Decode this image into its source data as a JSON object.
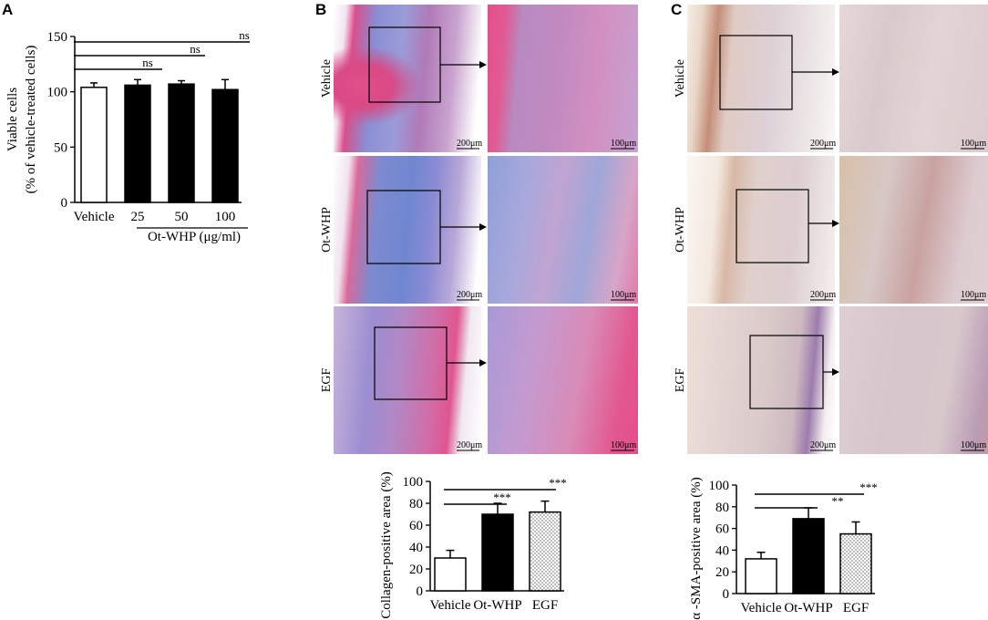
{
  "panels": {
    "A": "A",
    "B": "B",
    "C": "C"
  },
  "micrograph_rows": [
    "Vehicle",
    "Ot-WHP",
    "EGF"
  ],
  "scale_bars": {
    "low": "200μm",
    "high": "100μm"
  },
  "colors": {
    "vehicle_fill": "#ffffff",
    "otwhp_fill": "#000000",
    "egf_fill": "dotted-gray"
  },
  "chart_data": [
    {
      "id": "A",
      "type": "bar",
      "ylabel_line1": "Viable cells",
      "ylabel_line2": "(% of vehicle-treated cells)",
      "xlabel": "Ot-WHP (μg/ml)",
      "categories": [
        "Vehicle",
        "25",
        "50",
        "100"
      ],
      "values": [
        104,
        106,
        107,
        102
      ],
      "errors": [
        4,
        5,
        3,
        9
      ],
      "fills": [
        "white",
        "black",
        "black",
        "black"
      ],
      "ylim": [
        0,
        150
      ],
      "yticks": [
        "0",
        "50",
        "100",
        "150"
      ],
      "significance": [
        "ns",
        "ns",
        "ns"
      ]
    },
    {
      "id": "B",
      "type": "bar",
      "ylabel": "Collagen-positive area (%)",
      "categories": [
        "Vehicle",
        "Ot-WHP",
        "EGF"
      ],
      "values": [
        30,
        70,
        72
      ],
      "errors": [
        7,
        10,
        10
      ],
      "fills": [
        "white",
        "black",
        "dotted"
      ],
      "ylim": [
        0,
        100
      ],
      "yticks": [
        "0",
        "20",
        "40",
        "60",
        "80",
        "100"
      ],
      "significance": [
        "***",
        "***"
      ]
    },
    {
      "id": "C",
      "type": "bar",
      "ylabel": "α -SMA-positive area (%)",
      "categories": [
        "Vehicle",
        "Ot-WHP",
        "EGF"
      ],
      "values": [
        32,
        69,
        55
      ],
      "errors": [
        6,
        10,
        11
      ],
      "fills": [
        "white",
        "black",
        "dotted"
      ],
      "ylim": [
        0,
        100
      ],
      "yticks": [
        "0",
        "20",
        "40",
        "60",
        "80",
        "100"
      ],
      "significance": [
        "***",
        "**"
      ]
    }
  ]
}
